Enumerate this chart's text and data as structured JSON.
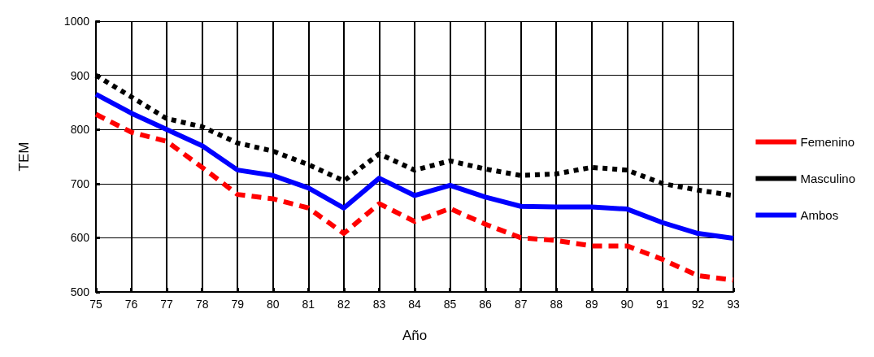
{
  "chart_data": {
    "type": "line",
    "xlabel": "Año",
    "ylabel": "TEM",
    "categories": [
      "75",
      "76",
      "77",
      "78",
      "79",
      "80",
      "81",
      "82",
      "83",
      "84",
      "85",
      "86",
      "87",
      "88",
      "89",
      "90",
      "91",
      "92",
      "93"
    ],
    "ylim": [
      500,
      1000
    ],
    "yticks": [
      500,
      600,
      700,
      800,
      900,
      1000
    ],
    "grid": true,
    "legend": "right",
    "marker": "none",
    "series": [
      {
        "name": "Femenino",
        "color": "#ff0000",
        "line_style": "dashed",
        "values": [
          828,
          795,
          778,
          730,
          680,
          672,
          655,
          608,
          663,
          630,
          654,
          625,
          600,
          595,
          585,
          585,
          560,
          530,
          522
        ]
      },
      {
        "name": "Masculino",
        "color": "#000000",
        "line_style": "dotted",
        "values": [
          900,
          860,
          820,
          805,
          775,
          760,
          735,
          705,
          755,
          725,
          742,
          727,
          715,
          718,
          730,
          725,
          700,
          688,
          678
        ]
      },
      {
        "name": "Ambos",
        "color": "#0000ff",
        "line_style": "solid",
        "values": [
          865,
          830,
          800,
          770,
          725,
          715,
          692,
          655,
          710,
          678,
          697,
          675,
          658,
          657,
          657,
          653,
          628,
          608,
          599
        ]
      }
    ]
  }
}
